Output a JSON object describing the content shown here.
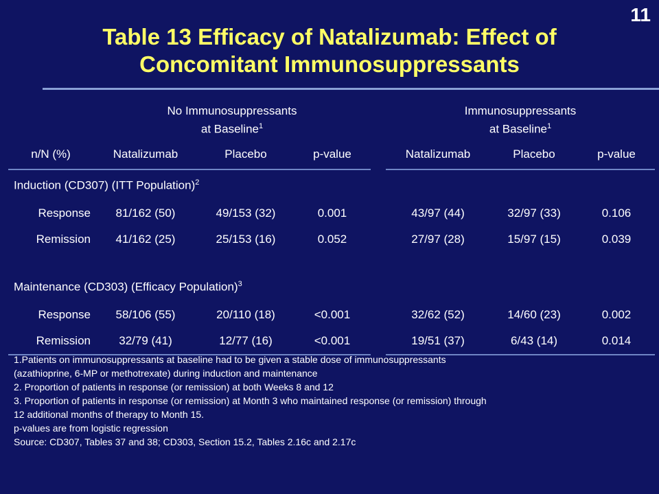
{
  "slide_number": "11",
  "title": {
    "line1": "Table 13  Efficacy of Natalizumab: Effect of",
    "line2": "Concomitant Immunosuppressants"
  },
  "table": {
    "group_headers": [
      {
        "line1": "No Immunosuppressants",
        "line2": "at Baseline",
        "sup": "1"
      },
      {
        "line1": "Immunosuppressants",
        "line2": "at Baseline",
        "sup": "1"
      }
    ],
    "column_headers": [
      "n/N (%)",
      "Natalizumab",
      "Placebo",
      "p-value",
      "Natalizumab",
      "Placebo",
      "p-value"
    ],
    "sections": [
      {
        "title": "Induction (CD307) (ITT Population)",
        "sup": "2",
        "rows": [
          {
            "label": "Response",
            "cells": [
              "81/162 (50)",
              "49/153 (32)",
              "0.001",
              "43/97 (44)",
              "32/97 (33)",
              "0.106"
            ]
          },
          {
            "label": "Remission",
            "cells": [
              "41/162 (25)",
              "25/153 (16)",
              "0.052",
              "27/97 (28)",
              "15/97 (15)",
              "0.039"
            ]
          }
        ]
      },
      {
        "title": "Maintenance (CD303) (Efficacy Population)",
        "sup": "3",
        "rows": [
          {
            "label": "Response",
            "cells": [
              "58/106 (55)",
              "20/110 (18)",
              "<0.001",
              "32/62 (52)",
              "14/60 (23)",
              "0.002"
            ]
          },
          {
            "label": "Remission",
            "cells": [
              "32/79 (41)",
              "12/77 (16)",
              "<0.001",
              "19/51 (37)",
              "6/43 (14)",
              "0.014"
            ]
          }
        ]
      }
    ]
  },
  "footnotes": [
    "1.Patients on immunosuppressants at baseline had to be given a stable dose of immunosuppressants",
    "(azathioprine, 6-MP or methotrexate) during induction and maintenance",
    "2. Proportion of patients in response (or remission) at both Weeks 8 and 12",
    "3. Proportion of patients in response (or remission) at Month 3 who maintained response (or remission) through",
    "12 additional months of therapy to Month 15.",
    "p-values are from logistic regression",
    "Source: CD307, Tables 37 and 38; CD303, Section 15.2, Tables 2.16c and 2.17c"
  ],
  "colors": {
    "background": "#0f1462",
    "title": "#ffff66",
    "rule": "#8aa0d6",
    "text": "#ffffff"
  }
}
